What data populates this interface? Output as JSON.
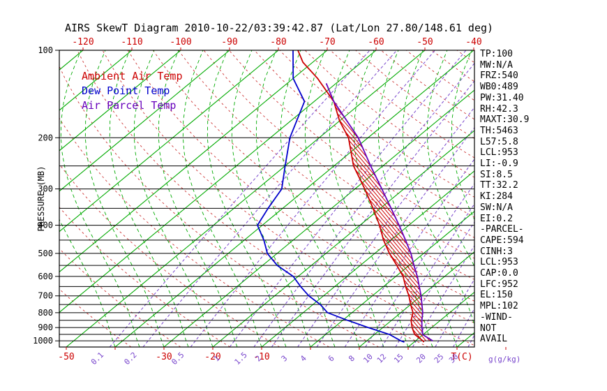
{
  "title": "AIRS SkewT Diagram 2010-10-22/03:39:42.87 (Lat/Lon 27.80/148.61 deg)",
  "legend": {
    "items": [
      {
        "label": "Ambient Air Temp",
        "color": "#cc0000"
      },
      {
        "label": "Dew Point Temp",
        "color": "#0000cc"
      },
      {
        "label": "Air Parcel Temp",
        "color": "#6600bb"
      }
    ]
  },
  "panel": {
    "lines": [
      "TP:100",
      "MW:N/A",
      "FRZ:540",
      "WB0:489",
      "PW:31.40",
      "RH:42.3",
      "MAXT:30.9",
      "TH:5463",
      "L57:5.8",
      "LCL:953",
      "LI:-0.9",
      "SI:8.5",
      "TT:32.2",
      "KI:284",
      "SW:N/A",
      "EI:0.2",
      "-PARCEL-",
      "CAPE:594",
      "CINH:3",
      "LCL:953",
      "CAP:0.0",
      "LFC:952",
      "EL:150",
      "MPL:102",
      "-WIND-",
      "NOT",
      "AVAIL"
    ]
  },
  "chart_data": {
    "type": "skewt",
    "title": "AIRS SkewT Diagram 2010-10-22/03:39:42.87 (Lat/Lon 27.80/148.61 deg)",
    "y_axis": {
      "label": "PRESSURE (MB)",
      "tick_labels": [
        100,
        200,
        300,
        400,
        500,
        600,
        700,
        800,
        900,
        1000
      ],
      "gridlines_mb": [
        100,
        200,
        250,
        300,
        350,
        400,
        450,
        500,
        550,
        600,
        650,
        700,
        750,
        800,
        850,
        900,
        950,
        1000
      ],
      "range": [
        100,
        1050
      ]
    },
    "x_axis": {
      "top_tick_labels_c": [
        -120,
        -110,
        -100,
        -90,
        -80,
        -70,
        -60,
        -50,
        -40
      ],
      "bottom_tick_labels_c": [
        -50,
        -30,
        -20,
        -10
      ],
      "bottom_axis_label": "T(C)"
    },
    "mixing_ratio": {
      "values_g_kg": [
        0.1,
        0.2,
        0.5,
        1,
        1.5,
        2,
        3,
        4,
        6,
        8,
        10,
        12,
        15,
        20,
        25,
        30
      ],
      "label": "g(g/kg)"
    },
    "isotherms_c": {
      "min": -130,
      "max": 40,
      "step": 10
    },
    "dry_adiabats_c": {
      "min": -40,
      "max": 170,
      "step": 10
    },
    "moist_adiabats_c": {
      "min": -40,
      "max": 45,
      "step": 5
    },
    "colors": {
      "isotherm": "#00aa00",
      "moist_adiabat": "#00aa00",
      "dry_adiabat": "#cc3333",
      "mixing_ratio": "#7744cc",
      "pressure_line": "#000000",
      "frame": "#000000",
      "top_labels": "#cc0000",
      "bottom_temp_labels": "#cc0000",
      "hatch": "#cc0000"
    },
    "series": [
      {
        "name": "Ambient Air Temp",
        "color": "#cc0000",
        "points": [
          [
            1010,
            22
          ],
          [
            1000,
            21.5
          ],
          [
            950,
            18.2
          ],
          [
            900,
            16
          ],
          [
            850,
            14
          ],
          [
            800,
            12.5
          ],
          [
            750,
            10
          ],
          [
            700,
            7.5
          ],
          [
            650,
            4.5
          ],
          [
            600,
            1.5
          ],
          [
            550,
            -2.5
          ],
          [
            500,
            -7
          ],
          [
            450,
            -11.5
          ],
          [
            400,
            -16
          ],
          [
            350,
            -21.5
          ],
          [
            300,
            -28
          ],
          [
            250,
            -36
          ],
          [
            200,
            -44
          ],
          [
            175,
            -50
          ],
          [
            150,
            -56
          ],
          [
            125,
            -65
          ],
          [
            110,
            -72
          ],
          [
            100,
            -76
          ]
        ]
      },
      {
        "name": "Dew Point Temp",
        "color": "#0000cc",
        "points": [
          [
            1010,
            18
          ],
          [
            1000,
            17
          ],
          [
            950,
            13
          ],
          [
            900,
            7
          ],
          [
            850,
            1
          ],
          [
            800,
            -5
          ],
          [
            750,
            -8.5
          ],
          [
            700,
            -13
          ],
          [
            650,
            -17
          ],
          [
            600,
            -21
          ],
          [
            550,
            -27
          ],
          [
            500,
            -32
          ],
          [
            450,
            -36
          ],
          [
            400,
            -41
          ],
          [
            350,
            -43
          ],
          [
            300,
            -45
          ],
          [
            250,
            -50
          ],
          [
            200,
            -56
          ],
          [
            150,
            -62
          ],
          [
            125,
            -70
          ],
          [
            100,
            -77
          ]
        ]
      },
      {
        "name": "Air Parcel Temp",
        "color": "#6600bb",
        "points": [
          [
            1000,
            23.5
          ],
          [
            953,
            20
          ],
          [
            900,
            18
          ],
          [
            850,
            16.2
          ],
          [
            800,
            14.5
          ],
          [
            750,
            12.3
          ],
          [
            700,
            10
          ],
          [
            650,
            7.3
          ],
          [
            600,
            4.4
          ],
          [
            550,
            1
          ],
          [
            500,
            -2.6
          ],
          [
            450,
            -7
          ],
          [
            400,
            -12
          ],
          [
            350,
            -17.8
          ],
          [
            300,
            -24.5
          ],
          [
            250,
            -32.5
          ],
          [
            200,
            -42
          ],
          [
            150,
            -56
          ],
          [
            130,
            -62
          ]
        ]
      }
    ],
    "cape_hatch": {
      "between": [
        "Air Parcel Temp",
        "Ambient Air Temp"
      ],
      "from_p": 1000,
      "to_p": 150
    }
  }
}
